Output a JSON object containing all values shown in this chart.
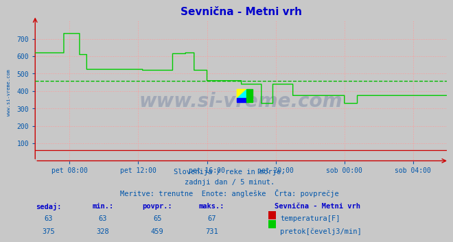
{
  "title": "Sevnična - Metni vrh",
  "title_color": "#0000cc",
  "bg_color": "#c8c8c8",
  "plot_bg_color": "#c8c8c8",
  "grid_color": "#ff9999",
  "tick_color": "#0055aa",
  "ylim_min": 0,
  "ylim_max": 800,
  "yticks": [
    100,
    200,
    300,
    400,
    500,
    600,
    700
  ],
  "avg_line_value": 459,
  "avg_line_color": "#00bb00",
  "watermark": "www.si-vreme.com",
  "watermark_color": "#1a3a7a",
  "watermark_alpha": 0.22,
  "sidebar_text": "www.si-vreme.com",
  "sidebar_color": "#0055aa",
  "caption_line1": "Slovenija / reke in morje.",
  "caption_line2": "zadnji dan / 5 minut.",
  "caption_line3": "Meritve: trenutne  Enote: angleške  Črta: povprečje",
  "caption_color": "#0055aa",
  "table_header_color": "#0000cc",
  "table_value_color": "#0055aa",
  "temperature_color": "#cc0000",
  "flow_color": "#00cc00",
  "temp_sedaj": 63,
  "temp_min": 63,
  "temp_povpr": 65,
  "temp_maks": 67,
  "flow_sedaj": 375,
  "flow_min": 328,
  "flow_povpr": 459,
  "flow_maks": 731,
  "xtick_labels": [
    "pet 08:00",
    "pet 12:00",
    "pet 16:00",
    "pet 20:00",
    "sob 00:00",
    "sob 04:00"
  ],
  "n_points": 576,
  "temp_base": 63,
  "arrow_color": "#cc0000",
  "logo_yellow": "#ffff00",
  "logo_cyan": "#00ffff",
  "logo_blue": "#0000ff",
  "logo_green": "#00cc00"
}
